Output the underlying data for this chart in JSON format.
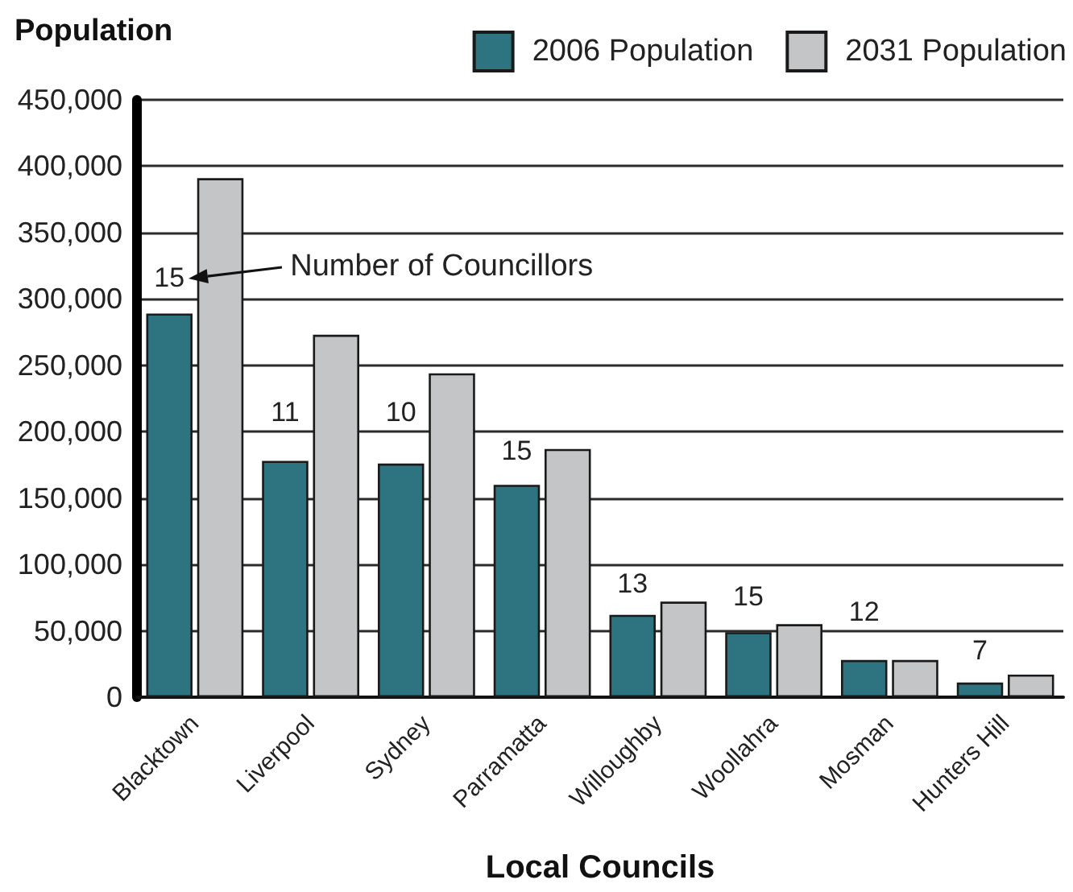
{
  "chart_data": {
    "type": "bar",
    "xlabel": "Local Councils",
    "ylabel": "Population",
    "categories": [
      "Blacktown",
      "Liverpool",
      "Sydney",
      "Parramatta",
      "Willoughby",
      "Woollahra",
      "Mosman",
      "Hunters Hill"
    ],
    "series": [
      {
        "name": "2006 Population",
        "color": "#2e7480",
        "values": [
          289000,
          178000,
          176000,
          160000,
          62000,
          49000,
          28000,
          11000
        ]
      },
      {
        "name": "2031 Population",
        "color": "#c4c5c7",
        "values": [
          391000,
          273000,
          244000,
          187000,
          72000,
          55000,
          28000,
          17000
        ]
      }
    ],
    "ylim": [
      0,
      450000
    ],
    "yticks": [
      0,
      {
        "value": 50000,
        "label": "50,000"
      },
      {
        "value": 100000,
        "label": "100,000"
      },
      {
        "value": 150000,
        "label": "150,000"
      },
      {
        "value": 200000,
        "label": "200,000"
      },
      {
        "value": 250000,
        "label": "250,000"
      },
      {
        "value": 300000,
        "label": "300,000"
      },
      {
        "value": 350000,
        "label": "350,000"
      },
      {
        "value": 400000,
        "label": "400,000"
      },
      {
        "value": 450000,
        "label": "450,000"
      }
    ],
    "grid": "y",
    "legend": "top right",
    "annotations": [
      "Number of Councillors",
      {
        "text": "15",
        "x": "Blacktown",
        "y": 289000
      },
      {
        "text": "11",
        "x": "Liverpool",
        "y": 178000
      },
      {
        "text": "10",
        "x": "Sydney",
        "y": 176000
      },
      {
        "text": "15",
        "x": "Parramatta",
        "y": 160000
      },
      {
        "text": "13",
        "x": "Willoughby",
        "y": 62000
      },
      {
        "text": "15",
        "x": "Woollahra",
        "y": 49000
      },
      {
        "text": "12",
        "x": "Mosman",
        "y": 28000
      },
      {
        "text": "7",
        "x": "Hunters Hill",
        "y": 11000
      }
    ]
  }
}
